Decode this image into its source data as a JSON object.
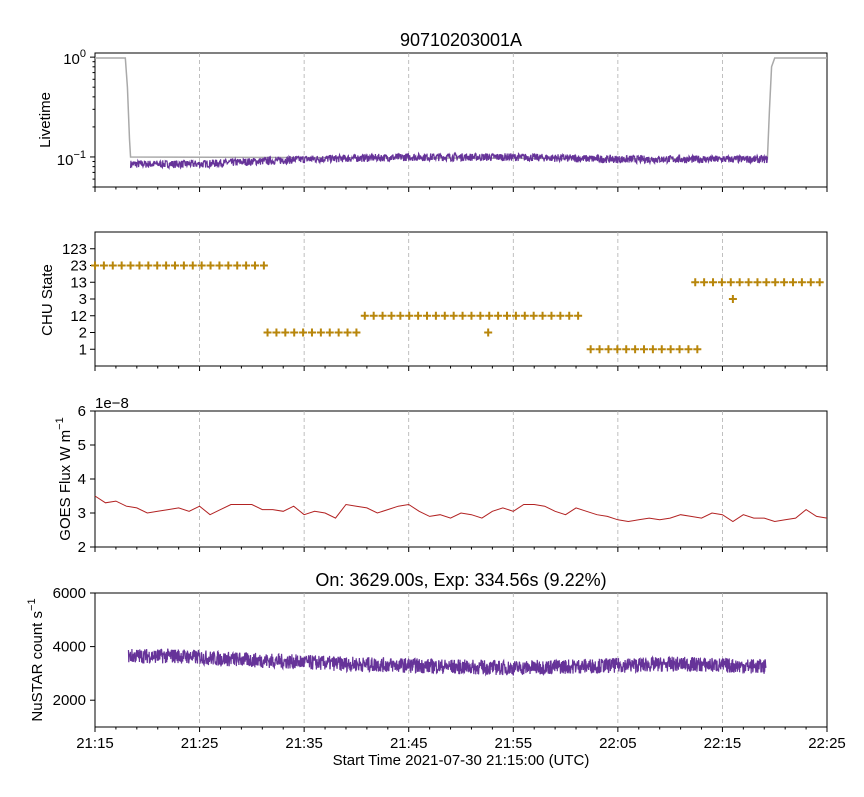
{
  "figure": {
    "title": "90710203001A",
    "xlabel": "Start Time 2021-07-30 21:15:00 (UTC)",
    "x_ticks": [
      "21:15",
      "21:25",
      "21:35",
      "21:45",
      "21:55",
      "22:05",
      "22:15",
      "22:25"
    ],
    "x_range_minutes": [
      0,
      70
    ],
    "colors": {
      "purple": "#663399",
      "gray": "#a9a9a9",
      "gold": "#b8860b",
      "red": "#b22222"
    }
  },
  "chart_data": [
    {
      "type": "line",
      "ylabel": "Livetime",
      "yscale": "log",
      "ylim": [
        0.05,
        1.1
      ],
      "y_tick_labels": [
        "10^0",
        "10^-1"
      ],
      "series": [
        {
          "color": "gray",
          "points": [
            [
              0,
              0.98
            ],
            [
              2.9,
              0.98
            ],
            [
              3.1,
              0.5
            ],
            [
              3.3,
              0.15
            ],
            [
              3.4,
              0.1
            ],
            [
              64.3,
              0.095
            ],
            [
              64.5,
              0.3
            ],
            [
              64.7,
              0.8
            ],
            [
              65,
              0.98
            ],
            [
              70,
              0.98
            ]
          ]
        },
        {
          "color": "purple",
          "points": [
            [
              3.4,
              0.085
            ],
            [
              10,
              0.085
            ],
            [
              20,
              0.095
            ],
            [
              30,
              0.1
            ],
            [
              40,
              0.1
            ],
            [
              50,
              0.095
            ],
            [
              64.3,
              0.095
            ]
          ]
        }
      ]
    },
    {
      "type": "scatter",
      "ylabel": "CHU State",
      "categories": [
        "1",
        "2",
        "12",
        "3",
        "13",
        "23",
        "123"
      ],
      "marker": "+",
      "segments": [
        {
          "state": "23",
          "x_start": 0,
          "x_end": 16.2,
          "step": 0.85
        },
        {
          "state": "2",
          "x_start": 16.5,
          "x_end": 25.4,
          "step": 0.85
        },
        {
          "state": "12",
          "x_start": 25.8,
          "x_end": 46.7,
          "step": 0.85
        },
        {
          "state": "2",
          "x_start": 37.6,
          "x_end": 37.6,
          "step": 1
        },
        {
          "state": "1",
          "x_start": 47.4,
          "x_end": 57.6,
          "step": 0.85
        },
        {
          "state": "13",
          "x_start": 57.4,
          "x_end": 69.4,
          "step": 0.85
        },
        {
          "state": "3",
          "x_start": 61.0,
          "x_end": 61.0,
          "step": 1
        }
      ]
    },
    {
      "type": "line",
      "ylabel": "GOES Flux W m^-1",
      "offset_label": "1e−8",
      "ylim": [
        2,
        6
      ],
      "y_ticks": [
        2,
        3,
        4,
        5,
        6
      ],
      "series": [
        {
          "color": "red",
          "x": [
            0,
            1,
            2,
            3,
            4,
            5,
            6,
            7,
            8,
            9,
            10,
            11,
            12,
            13,
            14,
            15,
            16,
            17,
            18,
            19,
            20,
            21,
            22,
            23,
            24,
            25,
            26,
            27,
            28,
            29,
            30,
            31,
            32,
            33,
            34,
            35,
            36,
            37,
            38,
            39,
            40,
            41,
            42,
            43,
            44,
            45,
            46,
            47,
            48,
            49,
            50,
            51,
            52,
            53,
            54,
            55,
            56,
            57,
            58,
            59,
            60,
            61,
            62,
            63,
            64,
            65,
            66,
            67,
            68,
            69,
            70
          ],
          "values": [
            3.5,
            3.3,
            3.35,
            3.2,
            3.15,
            3.0,
            3.05,
            3.1,
            3.15,
            3.05,
            3.2,
            2.95,
            3.1,
            3.25,
            3.25,
            3.25,
            3.1,
            3.1,
            3.05,
            3.2,
            2.95,
            3.05,
            3.0,
            2.85,
            3.25,
            3.2,
            3.15,
            3.0,
            3.1,
            3.2,
            3.25,
            3.05,
            2.9,
            2.95,
            2.85,
            3.0,
            2.95,
            2.85,
            3.05,
            3.15,
            3.05,
            3.25,
            3.25,
            3.2,
            3.05,
            2.95,
            3.15,
            3.05,
            2.95,
            2.9,
            2.8,
            2.75,
            2.8,
            2.85,
            2.8,
            2.85,
            2.95,
            2.9,
            2.85,
            3.0,
            2.95,
            2.75,
            2.95,
            2.85,
            2.85,
            2.75,
            2.8,
            2.85,
            3.1,
            2.9,
            2.85
          ]
        }
      ]
    },
    {
      "type": "line",
      "title": "On: 3629.00s, Exp: 334.56s (9.22%)",
      "ylabel": "NuSTAR count s^-1",
      "ylim": [
        1000,
        6000
      ],
      "y_ticks": [
        2000,
        4000,
        6000
      ],
      "series": [
        {
          "color": "purple",
          "points": [
            [
              3.2,
              3650
            ],
            [
              8,
              3650
            ],
            [
              12,
              3550
            ],
            [
              18,
              3450
            ],
            [
              24,
              3350
            ],
            [
              30,
              3300
            ],
            [
              34,
              3250
            ],
            [
              40,
              3200
            ],
            [
              44,
              3250
            ],
            [
              50,
              3300
            ],
            [
              56,
              3350
            ],
            [
              60,
              3300
            ],
            [
              64.2,
              3250
            ]
          ],
          "noise": 280
        }
      ]
    }
  ]
}
